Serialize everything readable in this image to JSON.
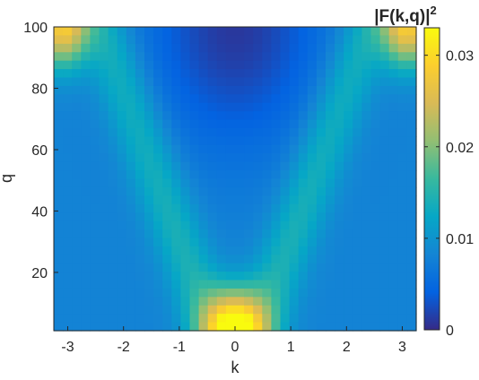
{
  "chart_data": {
    "type": "heatmap",
    "title": "",
    "xlabel": "k",
    "ylabel": "q",
    "xlim": [
      -3.25,
      3.25
    ],
    "ylim": [
      1,
      100
    ],
    "x_ticks": [
      -3,
      -2,
      -1,
      0,
      1,
      2,
      3
    ],
    "y_ticks": [
      20,
      40,
      60,
      80,
      100
    ],
    "colorbar": {
      "label": "|F(k,q)|",
      "label_superscript": "2",
      "range": [
        0,
        0.033
      ],
      "ticks": [
        0,
        0.01,
        0.02,
        0.03
      ],
      "tick_labels": [
        "0",
        "0.01",
        "0.02",
        "0.03"
      ],
      "colormap": "parula",
      "colormap_stops": [
        "#352a87",
        "#0363e1",
        "#1485d4",
        "#06a7c6",
        "#38b99e",
        "#92bf73",
        "#d9ba56",
        "#fcce2e",
        "#f9fb0e"
      ]
    },
    "features": [
      {
        "name": "central peak",
        "k": 0,
        "q_range": [
          1,
          18
        ],
        "value_max": 0.033
      },
      {
        "name": "left corner peak",
        "k": -3.1,
        "q_range": [
          85,
          100
        ],
        "value_max": 0.028
      },
      {
        "name": "right corner peak",
        "k": 3.1,
        "q_range": [
          85,
          100
        ],
        "value_max": 0.028
      },
      {
        "name": "left ridge",
        "k_at_q1": -0.4,
        "k_at_q100": -2.4,
        "value_approx": 0.013
      },
      {
        "name": "right ridge",
        "k_at_q1": 0.4,
        "k_at_q100": 2.4,
        "value_approx": 0.013
      },
      {
        "name": "background",
        "value_approx": 0.008
      },
      {
        "name": "top center minimum",
        "k": 0,
        "q": 100,
        "value_min": 0.001
      }
    ]
  }
}
